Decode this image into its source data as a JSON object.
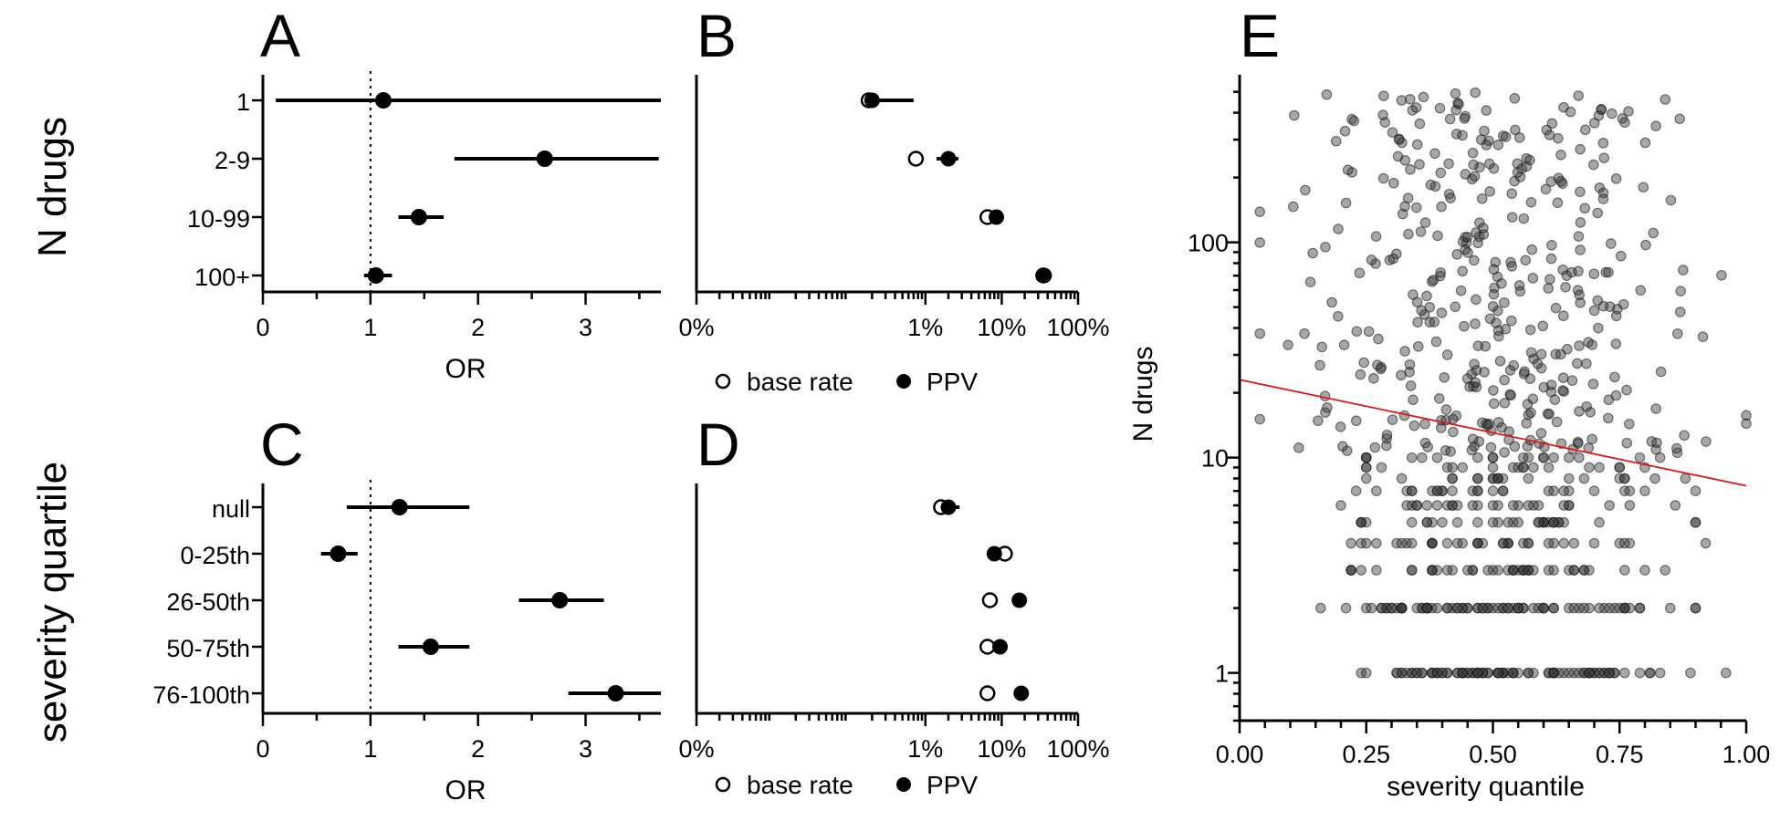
{
  "colors": {
    "ink": "#000000",
    "trend": "#e0161b",
    "scatter": "#555555"
  },
  "row_titles": [
    "N drugs",
    "severity quartile"
  ],
  "legend": {
    "open_label": "base rate",
    "filled_label": "PPV"
  },
  "chart_data": [
    {
      "id": "A",
      "type": "forest",
      "panel_label": "A",
      "xlabel": "OR",
      "xlim": [
        0,
        3.7
      ],
      "xticks": [
        "0",
        "1",
        "2",
        "3"
      ],
      "xtick_values": [
        0,
        1,
        2,
        3
      ],
      "reference_line": 1,
      "categories": [
        "1",
        "2-9",
        "10-99",
        "100+"
      ],
      "point": [
        1.12,
        2.62,
        1.45,
        1.05
      ],
      "ci_low": [
        0.12,
        1.78,
        1.26,
        0.94
      ],
      "ci_high": [
        3.7,
        3.68,
        1.68,
        1.2
      ]
    },
    {
      "id": "B",
      "type": "scatter",
      "panel_label": "B",
      "xscale": "log",
      "xlim": [
        0.001,
        100
      ],
      "xticks": [
        "0%",
        "1%",
        "10%",
        "100%"
      ],
      "xtick_values": [
        0.001,
        1,
        10,
        100
      ],
      "categories": [
        "1",
        "2-9",
        "10-99",
        "100+"
      ],
      "series": [
        {
          "name": "base rate",
          "values": [
            0.18,
            0.75,
            6.5,
            35
          ]
        },
        {
          "name": "PPV",
          "values": [
            0.2,
            2,
            8.5,
            36
          ],
          "ci_low": [
            0.18,
            1.4,
            null,
            null
          ],
          "ci_high": [
            0.7,
            2.7,
            null,
            null
          ]
        }
      ]
    },
    {
      "id": "C",
      "type": "forest",
      "panel_label": "C",
      "xlabel": "OR",
      "xlim": [
        0,
        3.7
      ],
      "xticks": [
        "0",
        "1",
        "2",
        "3"
      ],
      "xtick_values": [
        0,
        1,
        2,
        3
      ],
      "reference_line": 1,
      "categories": [
        "null",
        "0-25th",
        "26-50th",
        "50-75th",
        "76-100th"
      ],
      "point": [
        1.27,
        0.7,
        2.76,
        1.56,
        3.28
      ],
      "ci_low": [
        0.78,
        0.54,
        2.38,
        1.26,
        2.84
      ],
      "ci_high": [
        1.92,
        0.88,
        3.17,
        1.92,
        3.7
      ]
    },
    {
      "id": "D",
      "type": "scatter",
      "panel_label": "D",
      "xscale": "log",
      "xlim": [
        0.001,
        100
      ],
      "xticks": [
        "0%",
        "1%",
        "10%",
        "100%"
      ],
      "xtick_values": [
        0.001,
        1,
        10,
        100
      ],
      "categories": [
        "null",
        "0-25th",
        "26-50th",
        "50-75th",
        "76-100th"
      ],
      "series": [
        {
          "name": "base rate",
          "values": [
            1.6,
            11,
            7,
            6.5,
            6.5
          ]
        },
        {
          "name": "PPV",
          "values": [
            2,
            8,
            17,
            9.5,
            18
          ],
          "ci_low": [
            1.4,
            6.8,
            null,
            8.3,
            null
          ],
          "ci_high": [
            2.8,
            9.5,
            null,
            11,
            null
          ]
        }
      ]
    },
    {
      "id": "E",
      "type": "scatter",
      "panel_label": "E",
      "xlabel": "severity quantile",
      "ylabel": "N drugs",
      "xlim": [
        0,
        1
      ],
      "ylim": [
        0.6,
        600
      ],
      "yscale": "log",
      "xticks": [
        "0.00",
        "0.25",
        "0.50",
        "0.75",
        "1.00"
      ],
      "xtick_values": [
        0,
        0.25,
        0.5,
        0.75,
        1
      ],
      "yticks": [
        "1",
        "10",
        "100"
      ],
      "ytick_values": [
        1,
        10,
        100
      ],
      "trendline": {
        "x": [
          0,
          1
        ],
        "y": [
          23,
          7.4
        ]
      },
      "point_density": [
        {
          "n": 1,
          "count": 95,
          "x_range": [
            0.22,
            0.97
          ],
          "x_center": 0.55,
          "x_spread": 0.16
        },
        {
          "n": 2,
          "count": 80,
          "x_range": [
            0.1,
            0.9
          ],
          "x_center": 0.52,
          "x_spread": 0.17
        },
        {
          "n": 3,
          "count": 42,
          "x_range": [
            0.22,
            0.95
          ],
          "x_center": 0.55,
          "x_spread": 0.18
        },
        {
          "n": 4,
          "count": 36,
          "x_range": [
            0.22,
            0.92
          ],
          "x_center": 0.5,
          "x_spread": 0.17
        },
        {
          "n": 5,
          "count": 32,
          "x_range": [
            0.24,
            0.9
          ],
          "x_center": 0.52,
          "x_spread": 0.17
        },
        {
          "n": 6,
          "count": 26,
          "x_range": [
            0.2,
            0.92
          ],
          "x_center": 0.52,
          "x_spread": 0.17
        },
        {
          "n": 7,
          "count": 26,
          "x_range": [
            0.1,
            0.9
          ],
          "x_center": 0.5,
          "x_spread": 0.18
        },
        {
          "n": 8,
          "count": 20,
          "x_range": [
            0.25,
            0.88
          ],
          "x_center": 0.52,
          "x_spread": 0.16
        },
        {
          "n": 9,
          "count": 18,
          "x_range": [
            0.25,
            0.9
          ],
          "x_center": 0.52,
          "x_spread": 0.17
        },
        {
          "n": 10,
          "count": 18,
          "x_range": [
            0.25,
            0.92
          ],
          "x_center": 0.52,
          "x_spread": 0.17
        }
      ],
      "continuous_points": {
        "count": 400,
        "y_range": [
          10.5,
          500
        ],
        "x_range": [
          0.04,
          1.0
        ],
        "x_center": 0.52,
        "x_spread": 0.2
      }
    }
  ]
}
